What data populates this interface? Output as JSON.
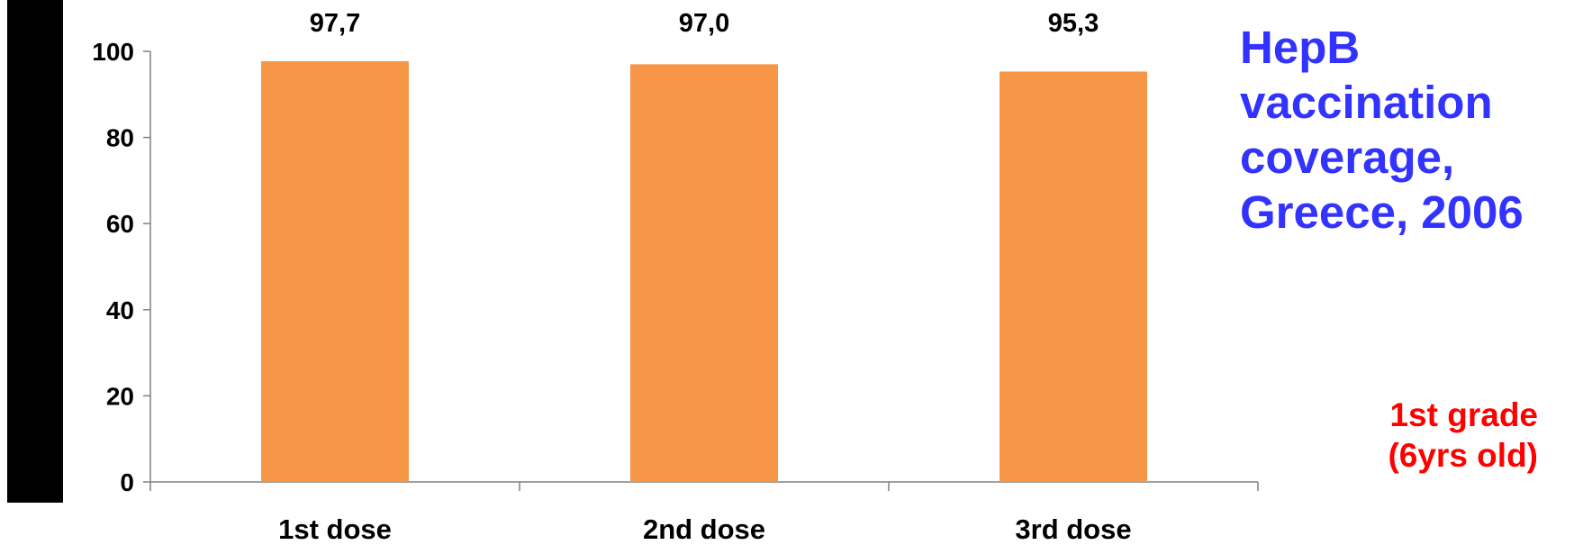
{
  "chart_data": {
    "type": "bar",
    "title": "HepB\nvaccination\ncoverage,\nGreece, 2006",
    "annotation": "1st grade\n(6yrs old)",
    "categories": [
      "1st dose",
      "2nd dose",
      "3rd dose"
    ],
    "values": [
      97.7,
      97.0,
      95.3
    ],
    "value_labels": [
      "97,7",
      "97,0",
      "95,3"
    ],
    "yticks": [
      "0",
      "20",
      "40",
      "60",
      "80",
      "100"
    ],
    "ylim": [
      0,
      100
    ],
    "grid": false,
    "legend": "none",
    "xlabel": "",
    "ylabel": ""
  },
  "colors": {
    "bar": "#F79646",
    "title": "#3333FF",
    "annotation": "#FF0000",
    "axis": "#808080"
  }
}
